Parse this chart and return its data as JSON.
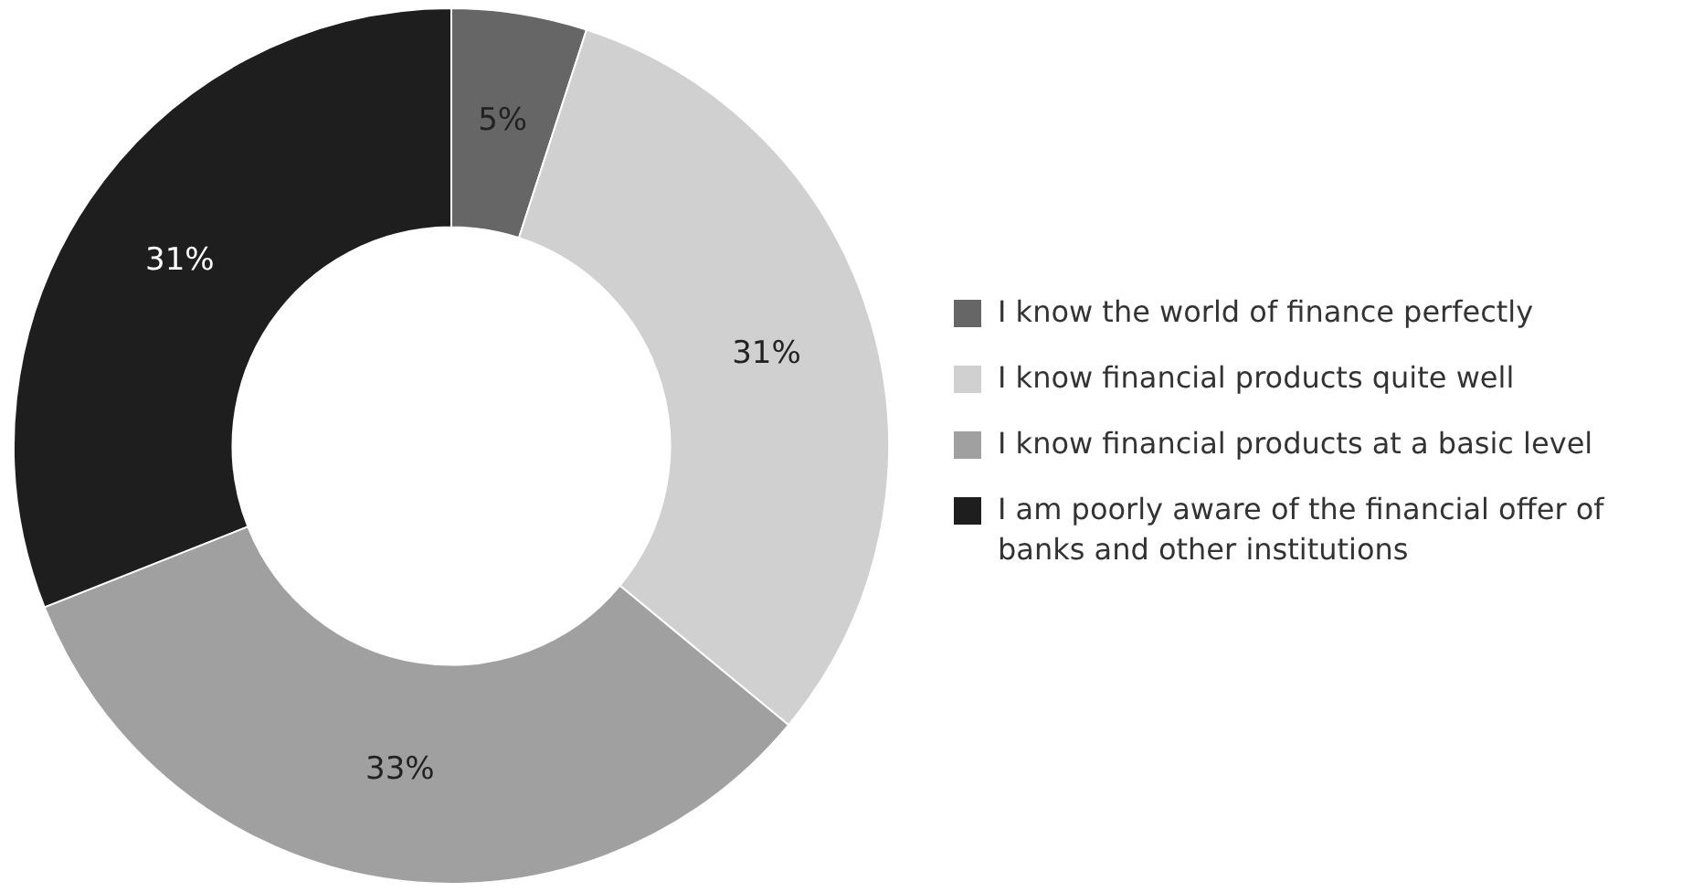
{
  "chart_data": {
    "type": "donut",
    "categories": [
      "I know the world of finance perfectly",
      "I know financial products quite well",
      "I know financial products at a basic level",
      "I am poorly aware of the financial offer of banks and other institutions"
    ],
    "values": [
      5,
      31,
      33,
      31
    ],
    "colors": [
      "#666666",
      "#d0d0d0",
      "#a0a0a0",
      "#1e1e1e"
    ],
    "value_labels": [
      "5%",
      "31%",
      "33%",
      "31%"
    ],
    "legend": "right"
  }
}
